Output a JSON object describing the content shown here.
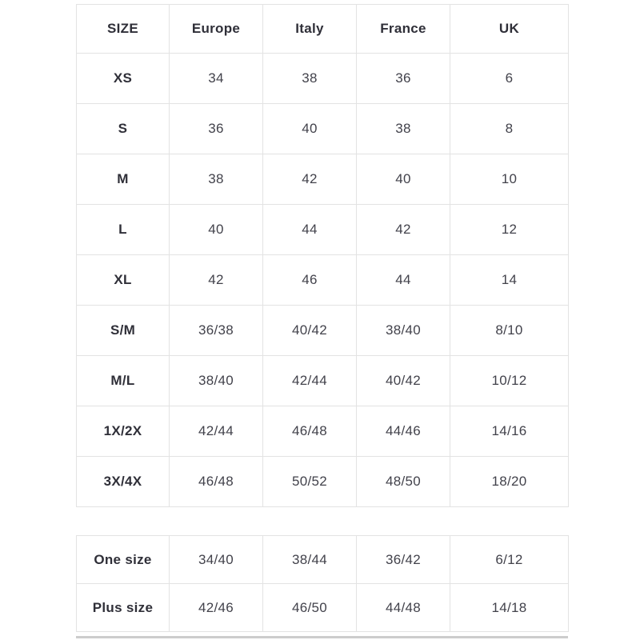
{
  "colors": {
    "background": "#ffffff",
    "text_bold": "#2f2f38",
    "text_value": "#42424b",
    "border": "#e3e3e3",
    "scrollbar_thumb": "#cccccc"
  },
  "main_table": {
    "headers": [
      "SIZE",
      "Europe",
      "Italy",
      "France",
      "UK"
    ],
    "rows": [
      [
        "XS",
        "34",
        "38",
        "36",
        "6"
      ],
      [
        "S",
        "36",
        "40",
        "38",
        "8"
      ],
      [
        "M",
        "38",
        "42",
        "40",
        "10"
      ],
      [
        "L",
        "40",
        "44",
        "42",
        "12"
      ],
      [
        "XL",
        "42",
        "46",
        "44",
        "14"
      ],
      [
        "S/M",
        "36/38",
        "40/42",
        "38/40",
        "8/10"
      ],
      [
        "M/L",
        "38/40",
        "42/44",
        "40/42",
        "10/12"
      ],
      [
        "1X/2X",
        "42/44",
        "46/48",
        "44/46",
        "14/16"
      ],
      [
        "3X/4X",
        "46/48",
        "50/52",
        "48/50",
        "18/20"
      ]
    ]
  },
  "secondary_table": {
    "rows": [
      [
        "One size",
        "34/40",
        "38/44",
        "36/42",
        "6/12"
      ],
      [
        "Plus size",
        "42/46",
        "46/50",
        "44/48",
        "14/18"
      ]
    ]
  }
}
